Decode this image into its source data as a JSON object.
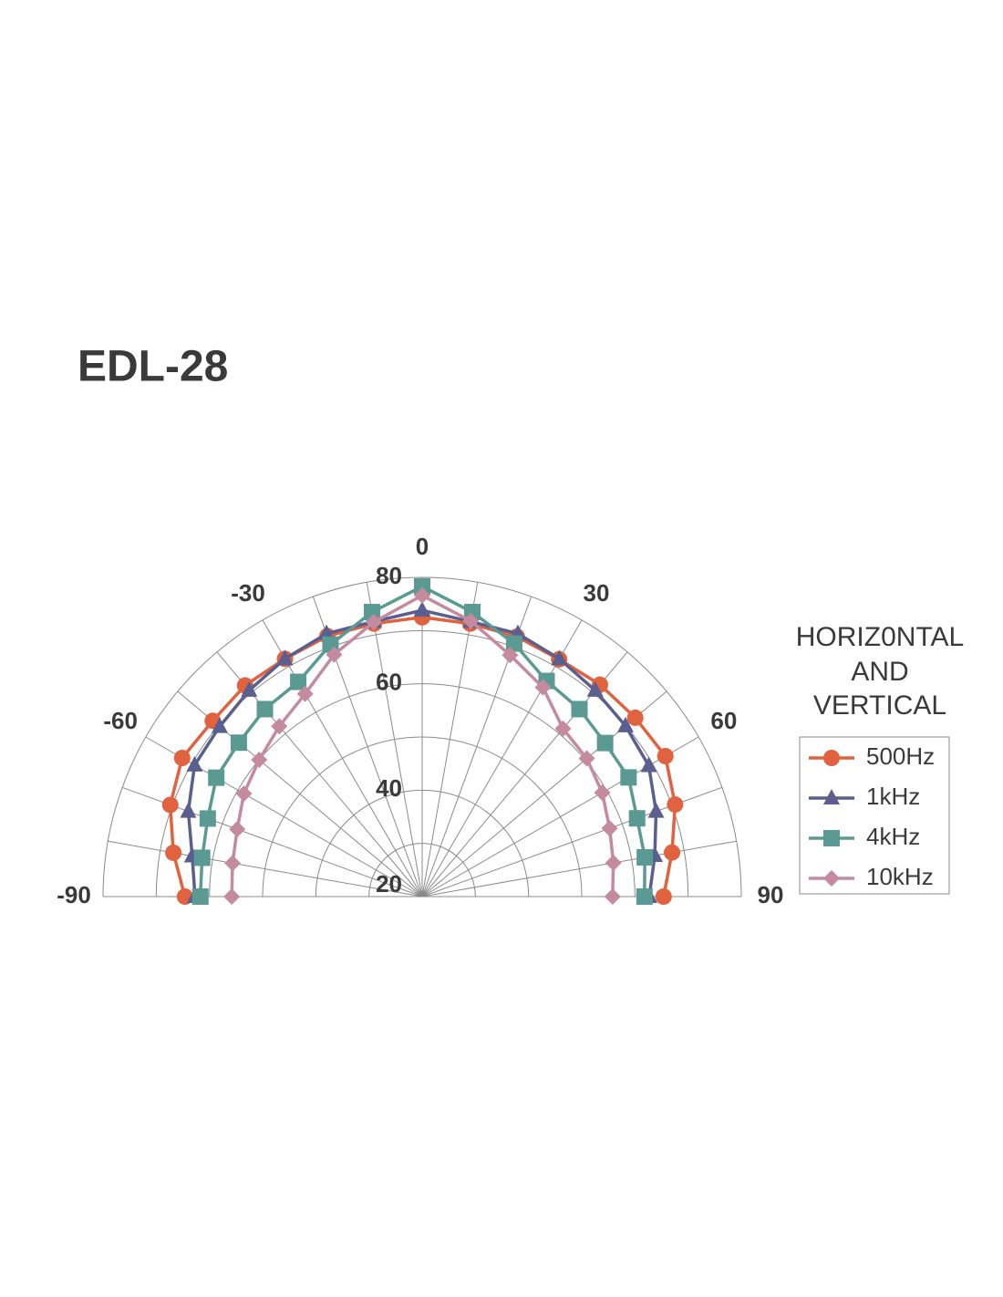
{
  "chart_data": {
    "type": "polar",
    "title": "EDL-28",
    "legend_title": [
      "HORIZ0NTAL",
      "AND",
      "VERTICAL"
    ],
    "x": [
      -90,
      -80,
      -70,
      -60,
      -50,
      -40,
      -30,
      -20,
      -10,
      0,
      10,
      20,
      30,
      40,
      50,
      60,
      70,
      80,
      90
    ],
    "rlim": [
      20,
      80
    ],
    "rticks": [
      20,
      40,
      60,
      80
    ],
    "rgrid": [
      20,
      30,
      40,
      50,
      60,
      70,
      80
    ],
    "thetaticks": [
      -90,
      -60,
      -30,
      0,
      30,
      60,
      90
    ],
    "grid": true,
    "legend": "right",
    "series": [
      {
        "name": "500Hz",
        "color": "#e0623f",
        "marker": "circle",
        "values": [
          64.6,
          67.5,
          70.4,
          72.1,
          71.4,
          71.8,
          71.6,
          72.1,
          72.1,
          72.5,
          72.1,
          72,
          71.5,
          72,
          72.3,
          72.8,
          70.6,
          67.7,
          65.4
        ]
      },
      {
        "name": "1kHz",
        "color": "#5a5f8f",
        "marker": "triangle",
        "values": [
          62.7,
          63.9,
          66.8,
          69.4,
          69.7,
          70.6,
          71.6,
          72.6,
          72.5,
          73.8,
          72.5,
          72.6,
          71.6,
          70.6,
          69.9,
          69.2,
          66.8,
          64.4,
          62.7
        ]
      },
      {
        "name": "4kHz",
        "color": "#5b9a92",
        "marker": "square",
        "values": [
          61.7,
          62,
          62.9,
          64.7,
          65,
          66,
          66.6,
          70.4,
          74.3,
          78.3,
          74.3,
          70.6,
          66.8,
          66,
          64.9,
          64.8,
          63,
          62.5,
          61.8
        ]
      },
      {
        "name": "10kHz",
        "color": "#c48a9e",
        "marker": "diamond",
        "values": [
          55.8,
          56.2,
          57,
          58.7,
          60,
          61.8,
          64,
          68.4,
          72.4,
          76.6,
          72.6,
          68.3,
          65.4,
          61.2,
          60.4,
          59.1,
          57.5,
          56.5,
          55.8
        ]
      }
    ]
  }
}
